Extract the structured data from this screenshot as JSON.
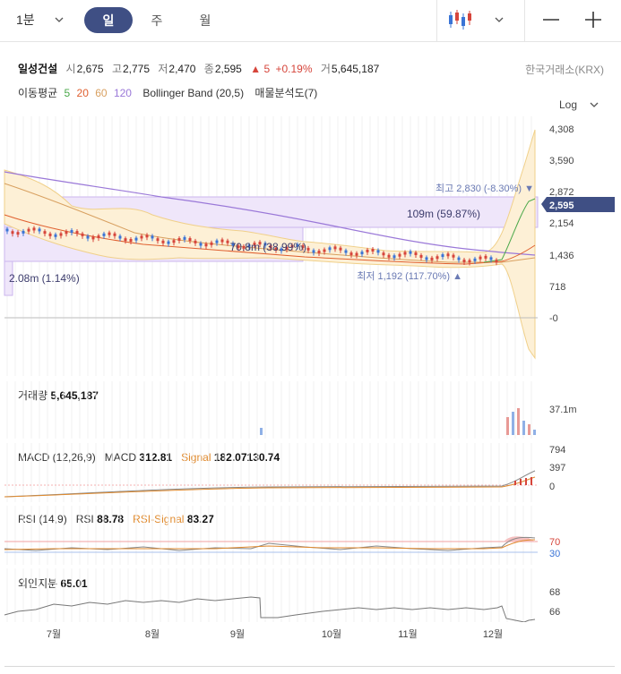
{
  "toolbar": {
    "timeframe": "1분",
    "tabs": [
      {
        "label": "일",
        "active": true
      },
      {
        "label": "주",
        "active": false
      },
      {
        "label": "월",
        "active": false
      }
    ],
    "icons": {
      "chart_type": "candlestick-icon",
      "dropdown": "chevron-down-icon",
      "zoom_out": "minus-icon",
      "zoom_in": "plus-icon"
    }
  },
  "quote": {
    "name": "일성건설",
    "open_label": "시",
    "open": "2,675",
    "high_label": "고",
    "high": "2,775",
    "low_label": "저",
    "low": "2,470",
    "close_label": "종",
    "close": "2,595",
    "change_arrow": "▲",
    "change": "5",
    "change_pct": "+0.19%",
    "volume_label": "거",
    "volume": "5,645,187",
    "exchange": "한국거래소(KRX)"
  },
  "indicators": {
    "ma_label": "이동평균",
    "ma_periods": [
      "5",
      "20",
      "60",
      "120"
    ],
    "bollinger": "Bollinger Band (20,5)",
    "volume_profile": "매물분석도(7)",
    "log_label": "Log"
  },
  "colors": {
    "up": "#d6453b",
    "down": "#3a74d6",
    "accent": "#3f4f84",
    "ma5": "#4aa84a",
    "ma20": "#e06030",
    "ma60": "#d8a060",
    "ma120": "#9a78d8",
    "bollinger_fill": "#fdf0d6",
    "profile_fill": "#efe6fa",
    "orange": "#e08a2e",
    "rsi_70": "#d6453b",
    "rsi_30": "#3a74d6"
  },
  "main_axis": [
    "4,308",
    "3,590",
    "2,872",
    "2,154",
    "1,436",
    "718",
    "-0"
  ],
  "price_tag": "2,595",
  "annotations": {
    "high": "최고 2,830 (-8.30%) ▼",
    "low": "최저 1,192 (117.70%) ▲",
    "profile_top": "109m (59.87%)",
    "profile_mid": "70.8m (38.99%)",
    "profile_low": "2.08m (1.14%)"
  },
  "volume_panel": {
    "label": "거래량",
    "value": "5,645,187",
    "axis": "37.1m"
  },
  "macd_panel": {
    "label": "MACD (12,26,9)",
    "macd_label": "MACD",
    "macd": "312.81",
    "signal_label": "Signal",
    "signal": "182.07130.74",
    "axis": [
      "794",
      "397",
      "0"
    ]
  },
  "rsi_panel": {
    "label": "RSI (14,9)",
    "rsi_label": "RSI",
    "rsi": "88.78",
    "signal_label": "RSI-Signal",
    "signal": "83.27",
    "axis": [
      "70",
      "30"
    ]
  },
  "foreign_panel": {
    "label": "외인지분",
    "value": "65.01",
    "axis": [
      "68",
      "66"
    ]
  },
  "x_axis": [
    "7월",
    "8월",
    "9월",
    "10월",
    "11월",
    "12월"
  ]
}
